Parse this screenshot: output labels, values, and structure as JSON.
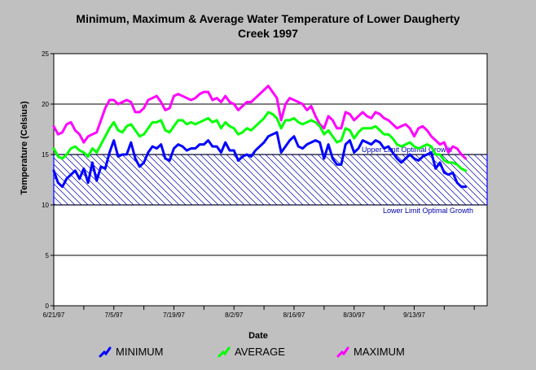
{
  "chart_data": {
    "type": "line",
    "title": [
      "Minimum, Maximum & Average Water Temperature of Lower Daugherty",
      "Creek 1997"
    ],
    "xlabel": "Date",
    "ylabel": "Temperature (Celsius)",
    "ylim": [
      0,
      25
    ],
    "yticks": [
      0,
      5,
      10,
      15,
      20,
      25
    ],
    "xlim": [
      "1997-06-21",
      "1997-09-30"
    ],
    "xticks": [
      "6/21/97",
      "7/5/97",
      "7/19/97",
      "8/2/97",
      "8/16/97",
      "8/30/97",
      "9/13/97"
    ],
    "grid": "horizontal",
    "legend_position": "bottom",
    "reference_band": {
      "lower": 10,
      "upper": 15,
      "fill": "diagonal hatch",
      "upper_label": "Upper Limit Optimal Growth",
      "lower_label": "Lower Limit Optimal Growth"
    },
    "x_start": "1997-06-21",
    "series": [
      {
        "name": "MINIMUM",
        "color": "#0000ff",
        "values": [
          13.4,
          12.2,
          11.8,
          12.6,
          13.0,
          13.4,
          12.6,
          13.6,
          12.2,
          14.2,
          12.4,
          13.8,
          13.6,
          15.2,
          16.4,
          14.8,
          15.0,
          15.0,
          16.2,
          14.6,
          13.8,
          14.2,
          15.2,
          15.8,
          15.6,
          16.0,
          14.6,
          14.4,
          15.6,
          16.0,
          15.8,
          15.4,
          15.6,
          15.6,
          16.0,
          16.0,
          16.4,
          15.8,
          15.8,
          15.2,
          16.2,
          15.4,
          15.4,
          14.4,
          14.8,
          15.0,
          14.8,
          15.4,
          15.8,
          16.2,
          16.8,
          17.0,
          17.2,
          15.2,
          15.8,
          16.4,
          16.8,
          15.8,
          15.6,
          16.0,
          16.2,
          16.4,
          16.2,
          14.6,
          16.0,
          14.6,
          14.0,
          14.0,
          16.0,
          16.4,
          15.2,
          15.6,
          16.4,
          16.2,
          16.0,
          16.4,
          16.2,
          15.6,
          15.8,
          15.2,
          14.6,
          14.2,
          14.6,
          15.0,
          14.6,
          14.4,
          14.8,
          15.0,
          15.2,
          13.6,
          14.2,
          13.2,
          13.0,
          13.2,
          12.2,
          11.8,
          11.8
        ]
      },
      {
        "name": "AVERAGE",
        "color": "#00ff00",
        "values": [
          15.6,
          14.8,
          14.6,
          15.0,
          15.6,
          15.8,
          15.4,
          15.2,
          14.8,
          15.6,
          15.2,
          16.0,
          16.8,
          17.6,
          18.2,
          17.4,
          17.2,
          17.8,
          18.0,
          17.4,
          16.8,
          17.0,
          17.6,
          18.2,
          18.2,
          18.4,
          17.4,
          17.2,
          17.8,
          18.4,
          18.4,
          18.0,
          18.2,
          18.0,
          18.2,
          18.4,
          18.6,
          18.2,
          18.4,
          17.6,
          18.2,
          17.8,
          17.6,
          17.0,
          17.2,
          17.6,
          17.4,
          17.8,
          18.2,
          18.6,
          19.2,
          19.0,
          18.6,
          17.6,
          18.4,
          18.4,
          18.6,
          18.2,
          18.0,
          18.2,
          18.4,
          18.2,
          17.8,
          17.0,
          17.4,
          16.8,
          16.2,
          16.4,
          17.6,
          17.4,
          16.6,
          17.2,
          17.6,
          17.6,
          17.6,
          17.8,
          17.4,
          17.0,
          17.0,
          16.6,
          16.0,
          15.8,
          16.0,
          16.2,
          15.8,
          15.6,
          15.8,
          16.0,
          15.8,
          15.0,
          15.0,
          14.4,
          14.2,
          14.2,
          14.0,
          13.6,
          13.4
        ]
      },
      {
        "name": "MAXIMUM",
        "color": "#ff00ff",
        "values": [
          17.8,
          17.0,
          17.2,
          18.0,
          18.2,
          17.4,
          17.0,
          16.2,
          16.8,
          17.0,
          17.2,
          18.4,
          19.6,
          20.4,
          20.4,
          20.0,
          20.2,
          20.4,
          20.2,
          19.2,
          19.2,
          19.6,
          20.4,
          20.6,
          20.8,
          20.2,
          19.4,
          19.6,
          20.8,
          21.0,
          20.8,
          20.6,
          20.4,
          20.6,
          21.0,
          21.2,
          21.2,
          20.4,
          20.6,
          20.2,
          20.8,
          20.2,
          20.0,
          19.4,
          19.8,
          20.2,
          20.2,
          20.6,
          21.0,
          21.4,
          21.8,
          21.2,
          20.6,
          18.4,
          20.0,
          20.6,
          20.4,
          20.2,
          20.0,
          19.4,
          19.8,
          18.8,
          18.0,
          17.6,
          18.8,
          18.4,
          17.6,
          17.6,
          19.2,
          19.0,
          18.4,
          18.8,
          19.2,
          18.8,
          18.6,
          19.2,
          19.0,
          18.6,
          18.4,
          18.0,
          17.6,
          17.8,
          18.0,
          17.6,
          16.8,
          17.6,
          17.8,
          17.4,
          16.8,
          16.4,
          16.0,
          16.2,
          15.2,
          15.8,
          15.6,
          15.0,
          14.6
        ]
      }
    ]
  }
}
